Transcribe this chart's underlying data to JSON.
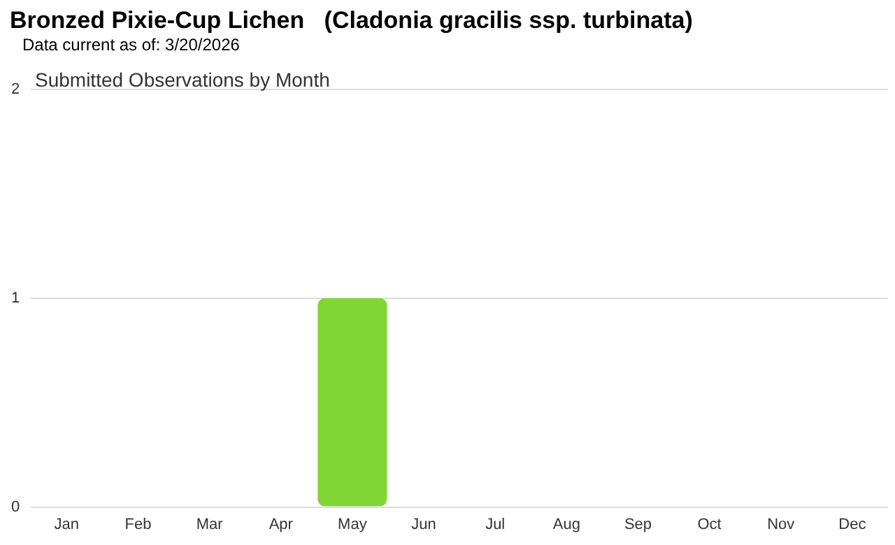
{
  "chart_data": {
    "type": "bar",
    "title": "Bronzed Pixie-Cup Lichen   (Cladonia gracilis ssp. turbinata)",
    "subtitle": "Data current as of: 3/20/2026",
    "annotations": [
      "Submitted Observations by Month"
    ],
    "categories": [
      "Jan",
      "Feb",
      "Mar",
      "Apr",
      "May",
      "Jun",
      "Jul",
      "Aug",
      "Sep",
      "Oct",
      "Nov",
      "Dec"
    ],
    "values": [
      0,
      0,
      0,
      0,
      1,
      0,
      0,
      0,
      0,
      0,
      0,
      0
    ],
    "color": "#7fd634",
    "ylim": [
      0,
      2
    ],
    "yticks": [
      0,
      1,
      2
    ],
    "grid": "y"
  }
}
